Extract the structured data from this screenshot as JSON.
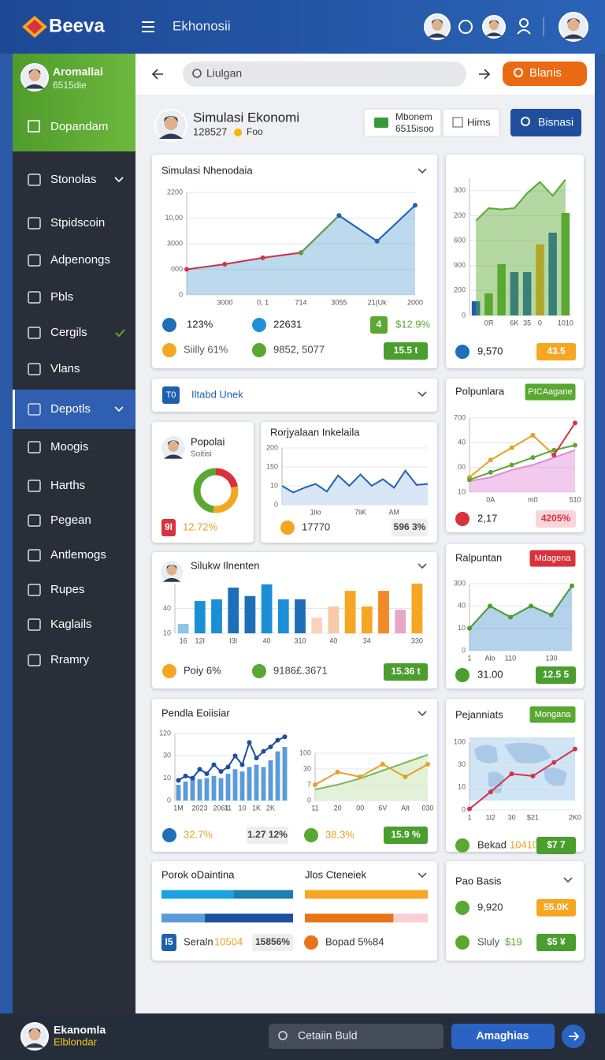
{
  "topbar": {
    "logo": "Beeva",
    "title": "Ekhonosii"
  },
  "sidebar": {
    "name": "Aromallai",
    "id": "6515die",
    "home": "Dopandam",
    "items": [
      "Stonolas",
      "Stpidscoin",
      "Adpenongs",
      "Pbls",
      "Cergils",
      "Vlans",
      "Depotls",
      "Moogis",
      "Harths",
      "Pegean",
      "Antlemogs",
      "Rupes",
      "Kaglails",
      "Rramry"
    ]
  },
  "toolbar": {
    "search": "Liulgan",
    "button": "Blanis"
  },
  "header": {
    "title": "Simulasi Ekonomi",
    "code": "128527",
    "tag": "Foo",
    "compare": {
      "label": "Mbonem",
      "sub": "6515isoo"
    },
    "hims": "Hims",
    "search": "Bisnasi"
  },
  "cards": [
    {
      "title": "Simulasi Nhenodaia",
      "chart": {
        "type": "area",
        "ylim": [
          0,
          4
        ],
        "yticks": [
          0,
          {
            "value": 1,
            "label": "000"
          },
          {
            "value": 2,
            "label": "3000"
          },
          {
            "value": 3,
            "label": "10,00"
          },
          {
            "value": 4,
            "label": "2200"
          }
        ],
        "categories": [
          null,
          "3000",
          "0, 1",
          "714",
          "3055",
          "21(Uk",
          "2000"
        ],
        "series": [
          {
            "type": "area",
            "color": "#6aaad8",
            "values": [
              1.0,
              1.2,
              1.45,
              1.65,
              3.1,
              2.1,
              3.5
            ]
          },
          {
            "type": "line",
            "color": "#d4334a",
            "values": [
              1.0,
              1.2,
              1.45,
              1.65,
              null,
              null,
              null
            ]
          },
          {
            "type": "line",
            "color": "#5a9e3a",
            "values": [
              null,
              null,
              null,
              1.65,
              3.1,
              null,
              null
            ]
          },
          {
            "type": "line",
            "color": "#1f63b0",
            "values": [
              null,
              null,
              null,
              null,
              3.1,
              2.1,
              3.5
            ]
          }
        ]
      },
      "items": [
        "123%",
        "22631",
        "4",
        "$12.9%",
        "Siilly 61%",
        "9852, 5077",
        "15.5 t"
      ]
    },
    {
      "chart": {
        "type": "bar",
        "ylim": [
          0,
          5.5
        ],
        "yticks": [
          0,
          {
            "value": 1,
            "label": "200"
          },
          {
            "value": 2,
            "label": "900"
          },
          {
            "value": 3,
            "label": "600"
          },
          {
            "value": 4,
            "label": "200"
          },
          {
            "value": 5,
            "label": "300"
          }
        ],
        "categories": [
          null,
          "0Я",
          null,
          "6K",
          "35",
          "0",
          null,
          "1010"
        ],
        "series": [
          {
            "type": "bar",
            "colors": [
              "#1f5fb0",
              "#5aa832",
              "#5aa832",
              "#1f5fb0",
              "#1f5fb0",
              "#f5a623",
              "#1f5fb0",
              "#5aa832"
            ],
            "values": [
              0.57,
              0.89,
              2.06,
              1.74,
              1.74,
              2.85,
              3.32,
              4.11
            ]
          },
          {
            "type": "area",
            "color": "#5aa832",
            "values": [
              3.8,
              4.3,
              4.25,
              4.3,
              4.9,
              5.35,
              4.8,
              5.45
            ]
          }
        ]
      },
      "items": [
        "9,570",
        "43.5"
      ]
    },
    {
      "icon": "T0",
      "title": "Iltabd Unek"
    },
    {
      "title": "Polpunlara",
      "badge": "PICAagane",
      "chart": {
        "type": "area",
        "ylim": [
          0,
          3
        ],
        "yticks": [
          {
            "value": 0,
            "label": "10"
          },
          {
            "value": 1,
            "label": "00"
          },
          {
            "value": 2,
            "label": "40"
          },
          {
            "value": 3,
            "label": "700"
          }
        ],
        "categories": [
          null,
          "0A",
          null,
          "m0",
          null,
          "510"
        ],
        "series": [
          {
            "type": "area",
            "color": "#e08ad8",
            "values": [
              0.45,
              0.6,
              0.9,
              1.1,
              1.4,
              1.7
            ]
          },
          {
            "type": "line",
            "color": "#e8a020",
            "values": [
              0.6,
              1.3,
              1.8,
              2.3,
              1.5,
              null
            ]
          },
          {
            "type": "line",
            "color": "#5aa832",
            "values": [
              0.5,
              0.8,
              1.1,
              1.4,
              1.7,
              1.9
            ]
          },
          {
            "type": "line",
            "color": "#d4334a",
            "values": [
              null,
              null,
              null,
              null,
              1.5,
              2.8
            ]
          }
        ]
      },
      "items": [
        "2,17",
        "4205%"
      ]
    },
    {
      "title": "Popolai",
      "subtitle": "Soitisi",
      "chart": {
        "type": "donut",
        "values": [
          22,
          30,
          48
        ],
        "colors": [
          "#d8323c",
          "#f5a623",
          "#5aa832"
        ]
      },
      "items": [
        "9I",
        "12.72%"
      ]
    },
    {
      "title": "Rorjyalaan Inkelaila",
      "chart": {
        "type": "area",
        "ylim": [
          0,
          3
        ],
        "yticks": [
          0,
          {
            "value": 1,
            "label": "10"
          },
          {
            "value": 2,
            "label": "150"
          },
          {
            "value": 3,
            "label": "200"
          }
        ],
        "categories": [
          null,
          null,
          null,
          "1lio",
          null,
          null,
          null,
          "7liK",
          null,
          null,
          "AM",
          null,
          null,
          null
        ],
        "series": [
          {
            "type": "area",
            "color": "#1f63b0",
            "fill": "#cfe0f3",
            "values": [
              1.0,
              0.65,
              0.9,
              1.1,
              0.7,
              1.55,
              1.0,
              1.6,
              1.0,
              1.35,
              0.9,
              1.8,
              1.05,
              1.1
            ]
          }
        ]
      },
      "items": [
        "17770",
        "596 3%"
      ]
    },
    {
      "title": "Silukw Ilnenten",
      "chart": {
        "type": "bar",
        "ylim": [
          0,
          2
        ],
        "yticks": [
          {
            "value": 0,
            "label": "10"
          },
          {
            "value": 1,
            "label": "40"
          }
        ],
        "categories": [
          "16",
          "12I",
          null,
          "I3I",
          null,
          "40",
          null,
          "310",
          null,
          "40",
          null,
          "34",
          null,
          null,
          "330"
        ],
        "series": [
          {
            "type": "bar",
            "colors": [
              "#8ec3ea",
              "#1b8fd6",
              "#1b8fd6",
              "#1f6fb8",
              "#1f6fb8",
              "#1b8fd6",
              "#1b8fd6",
              "#1f6fb8",
              "#f9d3bd",
              "#f7c9a8",
              "#f5a623",
              "#f5a623",
              "#f08a24",
              "#e9a5c8",
              "#f5a623"
            ],
            "values": [
              0.38,
              1.3,
              1.37,
              1.84,
              1.5,
              1.97,
              1.37,
              1.37,
              0.63,
              1.08,
              1.71,
              1.08,
              1.71,
              0.95,
              2.0
            ]
          }
        ]
      },
      "items": [
        "Poiy 6%",
        "9186£.3671",
        "15.36 t"
      ]
    },
    {
      "title": "Ralpuntan",
      "badge": "Mdagena",
      "chart": {
        "type": "area",
        "ylim": [
          0,
          3
        ],
        "yticks": [
          0,
          {
            "value": 1,
            "label": "10"
          },
          {
            "value": 2,
            "label": "40"
          },
          {
            "value": 3,
            "label": "300"
          }
        ],
        "categories": [
          "1",
          "Alo",
          "110",
          null,
          "130",
          null
        ],
        "series": [
          {
            "type": "area",
            "color": "#5b9bd8",
            "values": [
              1.0,
              2.0,
              1.5,
              2.0,
              1.6,
              2.9
            ]
          },
          {
            "type": "line",
            "color": "#4a9e2e",
            "values": [
              1.0,
              2.0,
              1.5,
              2.0,
              1.6,
              2.9
            ]
          }
        ]
      },
      "items": [
        "31.00",
        "12.5 5"
      ]
    },
    {
      "title": "Pendla Eoiisiar",
      "charts": [
        {
          "type": "bar",
          "ylim": [
            0,
            3
          ],
          "yticks": [
            0,
            {
              "value": 1,
              "label": "10"
            },
            {
              "value": 2,
              "label": "30"
            },
            {
              "value": 3,
              "label": "120"
            }
          ],
          "categories": [
            "1M",
            null,
            null,
            "2023",
            null,
            null,
            "2061",
            "11",
            null,
            "10",
            null,
            "1K",
            null,
            "2K",
            null,
            null
          ],
          "series": [
            {
              "type": "bar",
              "color": "#5b9bd8",
              "values": [
                0.7,
                0.85,
                1.0,
                0.95,
                1.0,
                1.1,
                1.0,
                1.2,
                1.4,
                1.3,
                1.5,
                1.6,
                1.5,
                1.8,
                2.2,
                2.4
              ]
            },
            {
              "type": "line",
              "color": "#1d4f9e",
              "values": [
                0.9,
                1.1,
                1.0,
                1.4,
                1.2,
                1.6,
                1.3,
                1.5,
                2.0,
                1.6,
                2.6,
                1.9,
                2.2,
                2.4,
                2.7,
                2.85
              ]
            }
          ]
        },
        {
          "type": "area",
          "ylim": [
            0,
            3
          ],
          "yticks": [
            0,
            {
              "value": 1,
              "label": "7"
            },
            {
              "value": 2,
              "label": "30"
            },
            {
              "value": 3,
              "label": "100"
            }
          ],
          "categories": [
            "11",
            "20",
            "00",
            "6V",
            "Alt",
            "030"
          ],
          "series": [
            {
              "type": "area",
              "color": "#7ab85a",
              "fill": "#dcedd0",
              "values": [
                0.7,
                1.0,
                1.4,
                1.9,
                2.4,
                2.9
              ]
            },
            {
              "type": "line",
              "color": "#e8a020",
              "values": [
                1.0,
                1.8,
                1.5,
                2.3,
                1.5,
                2.3
              ]
            }
          ]
        }
      ],
      "items": [
        "32.7%",
        "1.27 12%",
        "38.3%",
        "15.9 %"
      ]
    },
    {
      "title": "Pejanniats",
      "badge": "Mongana",
      "chart": {
        "type": "line",
        "ylim": [
          0,
          3
        ],
        "yticks": [
          0,
          {
            "value": 1,
            "label": "10"
          },
          {
            "value": 2,
            "label": "30"
          },
          {
            "value": 3,
            "label": "100"
          }
        ],
        "categories": [
          "1",
          "1l2",
          "30",
          "$21",
          null,
          "2K0"
        ],
        "series": [
          {
            "type": "line",
            "color": "#d4334a",
            "values": [
              0.05,
              0.8,
              1.6,
              1.5,
              2.1,
              2.7
            ]
          }
        ]
      },
      "items": [
        "Bekad",
        "10410",
        "$7 7"
      ]
    },
    {
      "title": "Porok oDaintina",
      "title2": "Jlos Cteneiek",
      "progress": [
        {
          "value": 55,
          "color": "#1aa3e0",
          "track": "#1b7fb0"
        },
        {
          "value": 33,
          "color": "#5b9bd8",
          "track": "#1d4f9e"
        },
        {
          "value": 100,
          "color": "#f5a623",
          "track": "#f5a623"
        },
        {
          "value": 72,
          "color": "#e8751a",
          "track": "#f9cfd3"
        }
      ],
      "items": [
        "I5",
        "Seraln",
        "10504",
        "15856%",
        "Bopad 5%84"
      ]
    },
    {
      "title": "Pao Basis",
      "items": [
        "9,920",
        "55.0K",
        "Sluly",
        "$19",
        "$5 ¥"
      ]
    }
  ],
  "bottombar": {
    "name": "Ekanomla",
    "sub": "Elblondar",
    "search": "Cetaiin Buld",
    "button": "Amaghias"
  }
}
